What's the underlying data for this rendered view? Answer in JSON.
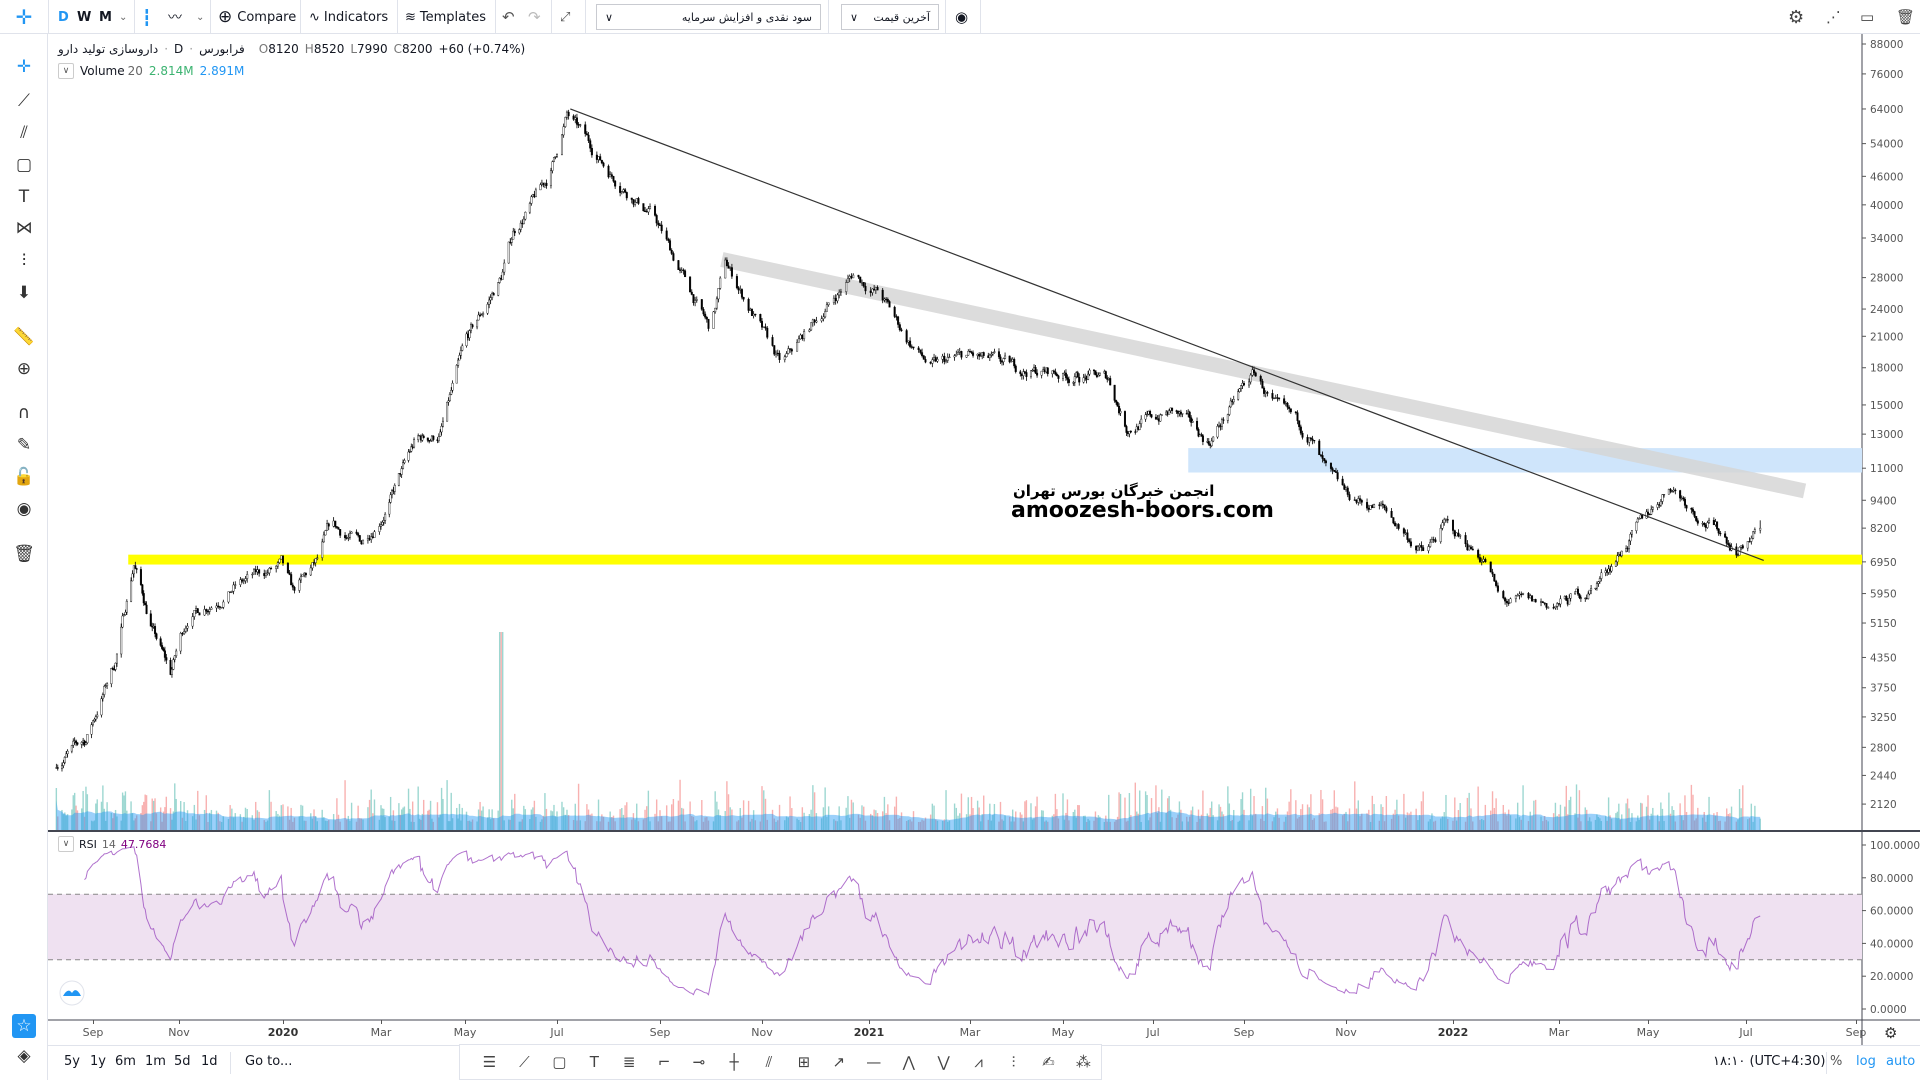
{
  "toolbar": {
    "intervals": [
      "D",
      "W",
      "M"
    ],
    "compare": "Compare",
    "indicators": "Indicators",
    "templates": "Templates",
    "dropdown_strategy": "سود نقدی و افزایش سرمایه",
    "dropdown_price": "آخرین قیمت"
  },
  "legend": {
    "name": "داروسازی تولید دارو",
    "interval": "D",
    "exchange": "فرابورس",
    "o_label": "O",
    "o": "8120",
    "h_label": "H",
    "h": "8520",
    "l_label": "L",
    "l": "7990",
    "c_label": "C",
    "c": "8200",
    "change": "+60 (+0.74%)"
  },
  "volume_legend": {
    "label": "Volume",
    "period": "20",
    "value": "2.814M",
    "ma": "2.891M"
  },
  "rsi_legend": {
    "label": "RSI",
    "period": "14",
    "value": "47.7684"
  },
  "watermark": {
    "line1": "انجمن خبرگان بورس تهران",
    "line2": "amoozesh-boors.com"
  },
  "price_axis": {
    "scale": "log",
    "ticks": [
      88000,
      76000,
      64000,
      54000,
      46000,
      40000,
      34000,
      28000,
      24000,
      21000,
      18000,
      15000,
      13000,
      11000,
      9400,
      8200,
      6950,
      5950,
      5150,
      4350,
      3750,
      3250,
      2800,
      2440,
      2120
    ],
    "last_price": 8200
  },
  "rsi_axis": {
    "ticks": [
      "100.0000",
      "80.0000",
      "60.0000",
      "40.0000",
      "20.0000",
      "0.0000"
    ],
    "upper_band": 70,
    "lower_band": 30
  },
  "time_axis": {
    "labels": [
      "Sep",
      "Nov",
      "2020",
      "Mar",
      "May",
      "Jul",
      "Sep",
      "Nov",
      "2021",
      "Mar",
      "May",
      "Jul",
      "Sep",
      "Nov",
      "2022",
      "Mar",
      "May",
      "Jul",
      "Sep"
    ]
  },
  "chart_data": {
    "type": "candlestick",
    "price_path": [
      [
        "2019-08-06",
        2600
      ],
      [
        "2019-08-27",
        2900
      ],
      [
        "2019-09-17",
        4300
      ],
      [
        "2019-09-30",
        6950
      ],
      [
        "2019-10-13",
        5000
      ],
      [
        "2019-10-26",
        4000
      ],
      [
        "2019-11-06",
        5300
      ],
      [
        "2019-12-04",
        6200
      ],
      [
        "2019-12-31",
        6800
      ],
      [
        "2020-01-07",
        5900
      ],
      [
        "2020-01-22",
        6900
      ],
      [
        "2020-01-30",
        8200
      ],
      [
        "2020-02-18",
        7600
      ],
      [
        "2020-03-08",
        9500
      ],
      [
        "2020-03-26",
        12500
      ],
      [
        "2020-04-13",
        13000
      ],
      [
        "2020-05-01",
        20000
      ],
      [
        "2020-05-25",
        28000
      ],
      [
        "2020-06-02",
        35000
      ],
      [
        "2020-06-26",
        46000
      ],
      [
        "2020-07-07",
        62000
      ],
      [
        "2020-07-18",
        55000
      ],
      [
        "2020-08-02",
        47000
      ],
      [
        "2020-08-28",
        38000
      ],
      [
        "2020-09-15",
        28000
      ],
      [
        "2020-10-01",
        21500
      ],
      [
        "2020-10-10",
        30000
      ],
      [
        "2020-10-25",
        24000
      ],
      [
        "2020-11-12",
        18000
      ],
      [
        "2020-11-29",
        22000
      ],
      [
        "2020-12-23",
        28500
      ],
      [
        "2021-01-07",
        26000
      ],
      [
        "2021-01-22",
        21000
      ],
      [
        "2021-02-06",
        18000
      ],
      [
        "2021-02-28",
        19000
      ],
      [
        "2021-03-25",
        18000
      ],
      [
        "2021-06-01",
        17000
      ],
      [
        "2021-06-13",
        13500
      ],
      [
        "2021-07-15",
        14500
      ],
      [
        "2021-08-08",
        12500
      ],
      [
        "2021-09-07",
        17500
      ],
      [
        "2021-09-21",
        14500
      ],
      [
        "2021-10-10",
        13000
      ],
      [
        "2021-10-21",
        10500
      ],
      [
        "2021-11-01",
        9500
      ],
      [
        "2021-11-22",
        9000
      ],
      [
        "2021-12-16",
        7200
      ],
      [
        "2021-12-27",
        8300
      ],
      [
        "2022-01-20",
        7000
      ],
      [
        "2022-01-27",
        5700
      ],
      [
        "2022-02-28",
        5600
      ],
      [
        "2022-03-24",
        6100
      ],
      [
        "2022-04-10",
        7200
      ],
      [
        "2022-04-26",
        8300
      ],
      [
        "2022-05-15",
        10200
      ],
      [
        "2022-05-30",
        9000
      ],
      [
        "2022-06-26",
        7400
      ],
      [
        "2022-07-09",
        8200
      ]
    ],
    "volume_spike": {
      "date": "2020-05-25"
    }
  },
  "drawings": {
    "trendline": {
      "from": [
        "2020-07-09",
        64000
      ],
      "to": [
        "2022-07-11",
        7000
      ],
      "color": "#333333"
    },
    "channel_band": {
      "from": [
        "2020-10-08",
        30600
      ],
      "to": [
        "2022-08-03",
        9840
      ],
      "color": "#d6d6d6"
    },
    "resistance_zone": {
      "from_date": "2021-07-25",
      "top": 12140,
      "bottom": 10770,
      "color": "#cfe5fb"
    },
    "support_zone": {
      "from_date": "2019-09-26",
      "top": 7200,
      "bottom": 6860,
      "color": "#ffff00"
    }
  },
  "colors": {
    "accent": "#2196f3",
    "volume_up": "#26a69a",
    "volume_down": "#ef5350",
    "volume_ma": "#2196f3",
    "rsi": "#9c4fc0",
    "rsi_band": "#efe1f1"
  },
  "bottom": {
    "ranges": [
      "5y",
      "1y",
      "6m",
      "1m",
      "5d",
      "1d"
    ],
    "goto": "Go to...",
    "clock": "۱۸:۱۰ (UTC+4:30)",
    "percent": "%",
    "log": "log",
    "auto": "auto"
  }
}
